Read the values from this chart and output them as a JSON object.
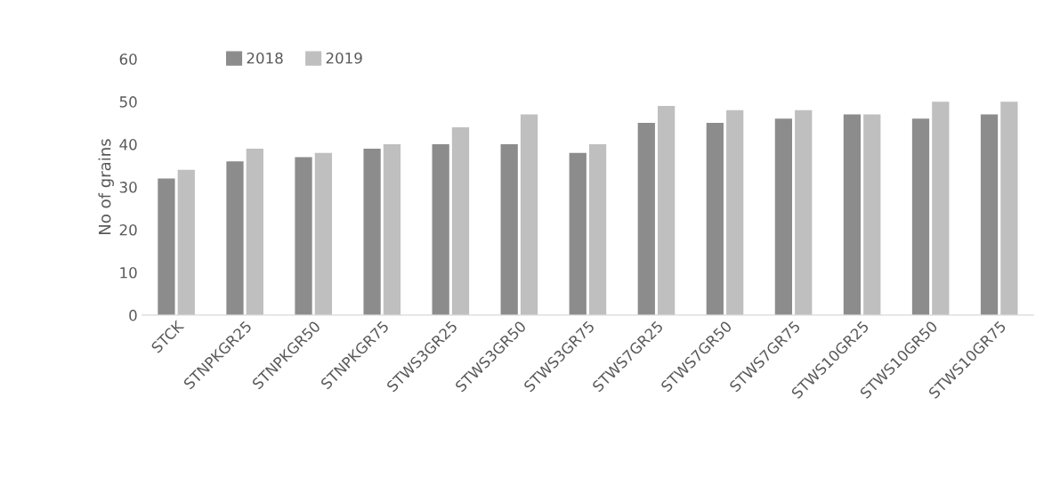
{
  "chart_data": {
    "type": "bar",
    "ylabel": "No of grains",
    "categories": [
      "STCK",
      "STNPKGR25",
      "STNPKGR50",
      "STNPKGR75",
      "STWS3GR25",
      "STWS3GR50",
      "STWS3GR75",
      "STWS7GR25",
      "STWS7GR50",
      "STWS7GR75",
      "STWS10GR25",
      "STWS10GR50",
      "STWS10GR75"
    ],
    "series": [
      {
        "name": "2018",
        "color": "#8c8c8c",
        "values": [
          32,
          36,
          37,
          39,
          40,
          40,
          38,
          45,
          45,
          46,
          47,
          46,
          47
        ]
      },
      {
        "name": "2019",
        "color": "#bfbfbf",
        "values": [
          34,
          39,
          38,
          40,
          44,
          47,
          40,
          49,
          48,
          48,
          47,
          50,
          50
        ]
      }
    ],
    "ylim": [
      0,
      60
    ],
    "yticks": [
      0,
      10,
      20,
      30,
      40,
      50,
      60
    ],
    "grid": false,
    "legend": "top left"
  }
}
